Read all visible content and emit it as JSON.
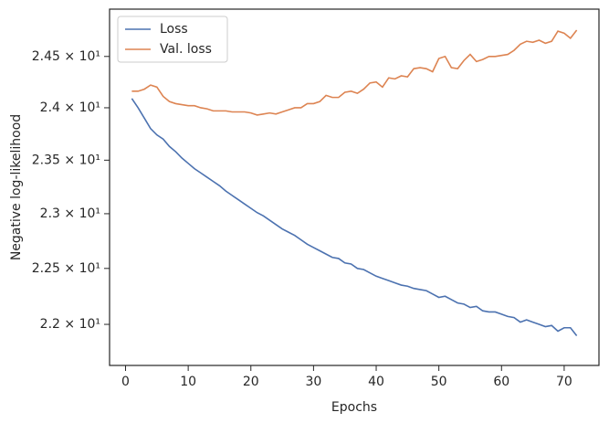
{
  "chart_data": {
    "type": "line",
    "xlabel": "Epochs",
    "ylabel": "Negative log-likelihood",
    "x": [
      1,
      2,
      3,
      4,
      5,
      6,
      7,
      8,
      9,
      10,
      11,
      12,
      13,
      14,
      15,
      16,
      17,
      18,
      19,
      20,
      21,
      22,
      23,
      24,
      25,
      26,
      27,
      28,
      29,
      30,
      31,
      32,
      33,
      34,
      35,
      36,
      37,
      38,
      39,
      40,
      41,
      42,
      43,
      44,
      45,
      46,
      47,
      48,
      49,
      50,
      51,
      52,
      53,
      54,
      55,
      56,
      57,
      58,
      59,
      60,
      61,
      62,
      63,
      64,
      65,
      66,
      67,
      68,
      69,
      70,
      71,
      72
    ],
    "series": [
      {
        "name": "Loss",
        "color": "#4c72b0",
        "values": [
          24.09,
          24.0,
          23.9,
          23.8,
          23.74,
          23.7,
          23.63,
          23.58,
          23.52,
          23.47,
          23.42,
          23.38,
          23.34,
          23.3,
          23.26,
          23.21,
          23.17,
          23.13,
          23.09,
          23.05,
          23.01,
          22.98,
          22.94,
          22.9,
          22.86,
          22.83,
          22.8,
          22.76,
          22.72,
          22.69,
          22.66,
          22.63,
          22.6,
          22.59,
          22.55,
          22.54,
          22.5,
          22.49,
          22.46,
          22.43,
          22.41,
          22.39,
          22.37,
          22.35,
          22.34,
          22.32,
          22.31,
          22.3,
          22.27,
          22.24,
          22.25,
          22.22,
          22.19,
          22.18,
          22.15,
          22.16,
          22.12,
          22.11,
          22.11,
          22.09,
          22.07,
          22.06,
          22.02,
          22.04,
          22.02,
          22.0,
          21.98,
          21.99,
          21.94,
          21.97,
          21.97,
          21.9
        ]
      },
      {
        "name": "Val. loss",
        "color": "#dd8452",
        "values": [
          24.16,
          24.16,
          24.18,
          24.22,
          24.2,
          24.11,
          24.06,
          24.04,
          24.03,
          24.02,
          24.02,
          24.0,
          23.99,
          23.97,
          23.97,
          23.97,
          23.96,
          23.96,
          23.96,
          23.95,
          23.93,
          23.94,
          23.95,
          23.94,
          23.96,
          23.98,
          24.0,
          24.0,
          24.04,
          24.04,
          24.06,
          24.12,
          24.1,
          24.1,
          24.15,
          24.16,
          24.14,
          24.18,
          24.24,
          24.25,
          24.2,
          24.29,
          24.28,
          24.31,
          24.3,
          24.38,
          24.39,
          24.38,
          24.35,
          24.48,
          24.5,
          24.39,
          24.38,
          24.46,
          24.52,
          24.45,
          24.47,
          24.5,
          24.5,
          24.51,
          24.52,
          24.56,
          24.62,
          24.65,
          24.64,
          24.66,
          24.63,
          24.65,
          24.75,
          24.73,
          24.68,
          24.76
        ]
      }
    ],
    "xlim": [
      -2.55,
      75.55
    ],
    "xticks": [
      0,
      10,
      20,
      30,
      40,
      50,
      60,
      70
    ],
    "ylim": [
      21.64,
      24.97
    ],
    "ylog": true,
    "yticks": [
      {
        "value": 22,
        "label": "2.2 × 10¹"
      },
      {
        "value": 22.5,
        "label": "2.25 × 10¹"
      },
      {
        "value": 23,
        "label": "2.3 × 10¹"
      },
      {
        "value": 23.5,
        "label": "2.35 × 10¹"
      },
      {
        "value": 24,
        "label": "2.4 × 10¹"
      },
      {
        "value": 24.5,
        "label": "2.45 × 10¹"
      }
    ],
    "legend": "upper left",
    "grid": false
  }
}
